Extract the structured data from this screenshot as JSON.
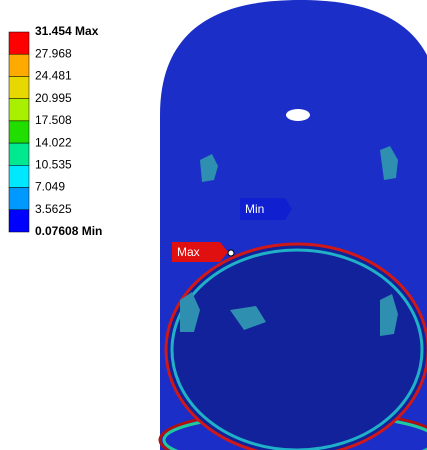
{
  "legend": {
    "labels": [
      "31.454 Max",
      "27.968",
      "24.481",
      "20.995",
      "17.508",
      "14.022",
      "10.535",
      "7.049",
      "3.5625",
      "0.07608 Min"
    ],
    "colors": [
      "#ff0000",
      "#ffaa00",
      "#e6d800",
      "#a8f000",
      "#22dd00",
      "#00e890",
      "#00e8ff",
      "#0099ff",
      "#0000ff"
    ]
  },
  "annotations": {
    "min": "Min",
    "max": "Max"
  }
}
